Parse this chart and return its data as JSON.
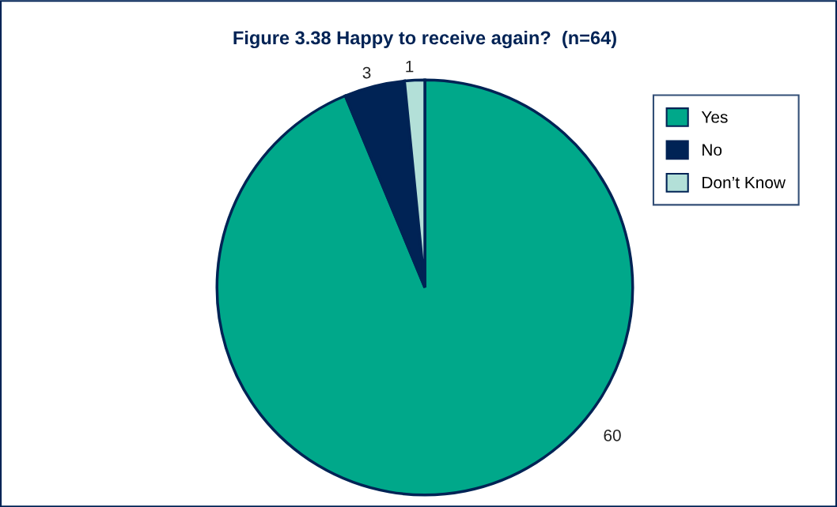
{
  "chart_data": {
    "type": "pie",
    "title": "Figure 3.38 Happy to receive again?  (n=64)",
    "categories": [
      "Yes",
      "No",
      "Don’t Know"
    ],
    "values": [
      60,
      3,
      1
    ],
    "colors": [
      "#00a88a",
      "#002355",
      "#b3e0d8"
    ],
    "data_labels": true,
    "legend": "top right"
  }
}
